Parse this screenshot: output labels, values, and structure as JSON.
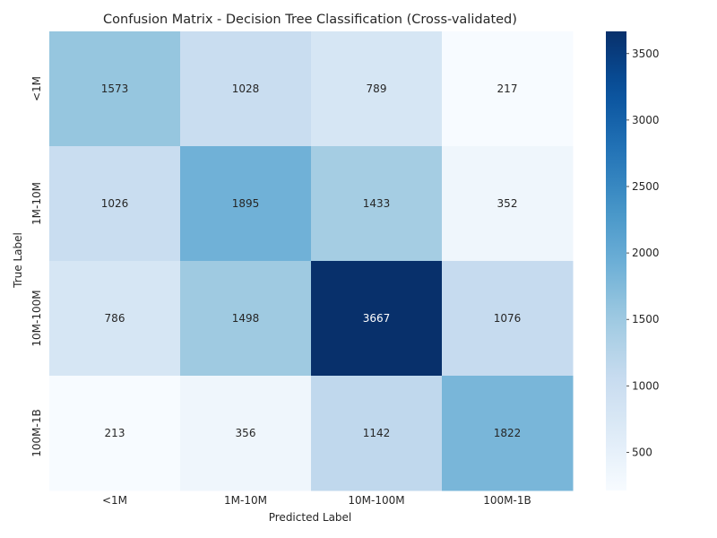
{
  "chart_data": {
    "type": "heatmap",
    "title": "Confusion Matrix - Decision Tree Classification (Cross-validated)",
    "xlabel": "Predicted Label",
    "ylabel": "True Label",
    "x_categories": [
      "<1M",
      "1M-10M",
      "10M-100M",
      "100M-1B"
    ],
    "y_categories": [
      "<1M",
      "1M-10M",
      "10M-100M",
      "100M-1B"
    ],
    "values": [
      [
        1573,
        1028,
        789,
        217
      ],
      [
        1026,
        1895,
        1433,
        352
      ],
      [
        786,
        1498,
        3667,
        1076
      ],
      [
        213,
        356,
        1142,
        1822
      ]
    ],
    "colorscale": "Blues",
    "colorbar": {
      "min": 213,
      "max": 3667,
      "ticks": [
        500,
        1000,
        1500,
        2000,
        2500,
        3000,
        3500
      ]
    }
  }
}
